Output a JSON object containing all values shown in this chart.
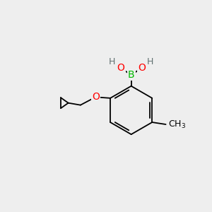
{
  "background_color": "#eeeeee",
  "atom_colors": {
    "B": "#00bb00",
    "O": "#ff0000",
    "H": "#607070",
    "C": "#000000"
  },
  "bond_color": "#000000",
  "bond_width": 1.3,
  "font_size_B": 10,
  "font_size_O": 10,
  "font_size_H": 9,
  "font_size_CH3": 9
}
